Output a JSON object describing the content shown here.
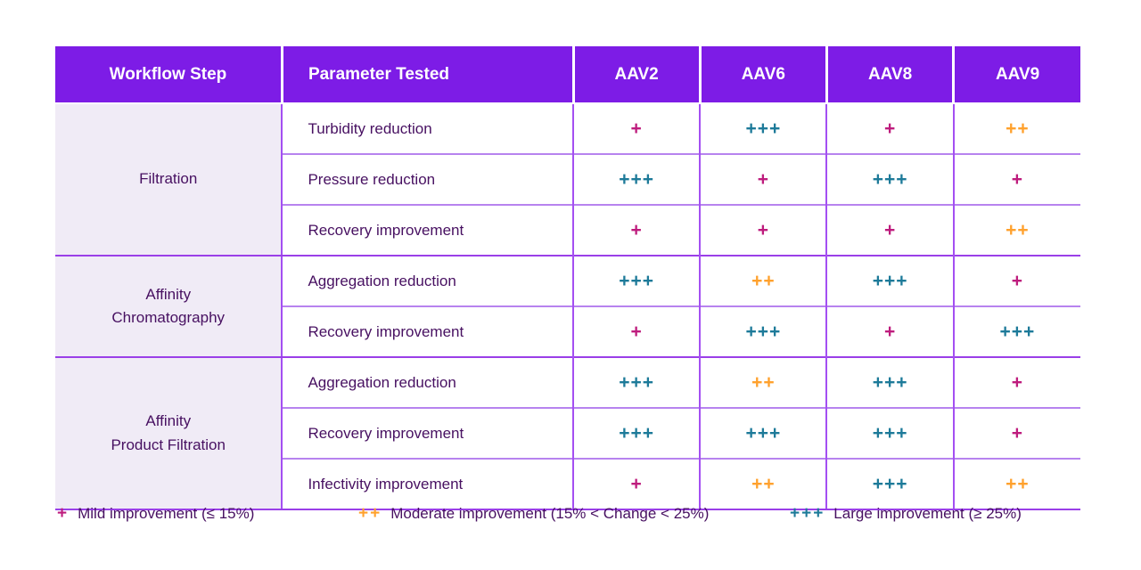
{
  "colors": {
    "header_bg": "#7d1ce6",
    "header_text": "#ffffff",
    "workflow_column_bg": "#f0ebf6",
    "body_text": "#471061",
    "mild": "#be1c7d",
    "moderate": "#ffa12d",
    "large": "#1d7a99",
    "grid_vertical": "#a44ff2",
    "grid_horizontal": "#b783ef",
    "grid_group_boundary": "#9a3fe8"
  },
  "chart_data": {
    "type": "table",
    "columns": [
      "Workflow Step",
      "Parameter Tested",
      "AAV2",
      "AAV6",
      "AAV8",
      "AAV9"
    ],
    "serotypes": [
      "AAV2",
      "AAV6",
      "AAV8",
      "AAV9"
    ],
    "groups": [
      {
        "label": "Filtration",
        "rowspan": 3
      },
      {
        "label": "Affinity\nChromatography",
        "rowspan": 2
      },
      {
        "label": "Affinity\nProduct Filtration",
        "rowspan": 3
      }
    ],
    "rows": [
      {
        "workflow_step": "Filtration",
        "parameter": "Turbidity reduction",
        "values": [
          {
            "symbol": "+",
            "level": "mild"
          },
          {
            "symbol": "+++",
            "level": "large"
          },
          {
            "symbol": "+",
            "level": "mild"
          },
          {
            "symbol": "++",
            "level": "moderate"
          }
        ]
      },
      {
        "workflow_step": "Filtration",
        "parameter": "Pressure reduction",
        "values": [
          {
            "symbol": "+++",
            "level": "large"
          },
          {
            "symbol": "+",
            "level": "mild"
          },
          {
            "symbol": "+++",
            "level": "large"
          },
          {
            "symbol": "+",
            "level": "mild"
          }
        ]
      },
      {
        "workflow_step": "Filtration",
        "parameter": "Recovery improvement",
        "values": [
          {
            "symbol": "+",
            "level": "mild"
          },
          {
            "symbol": "+",
            "level": "mild"
          },
          {
            "symbol": "+",
            "level": "mild"
          },
          {
            "symbol": "++",
            "level": "moderate"
          }
        ]
      },
      {
        "workflow_step": "Affinity Chromatography",
        "parameter": "Aggregation reduction",
        "values": [
          {
            "symbol": "+++",
            "level": "large"
          },
          {
            "symbol": "++",
            "level": "moderate"
          },
          {
            "symbol": "+++",
            "level": "large"
          },
          {
            "symbol": "+",
            "level": "mild"
          }
        ]
      },
      {
        "workflow_step": "Affinity Chromatography",
        "parameter": "Recovery improvement",
        "values": [
          {
            "symbol": "+",
            "level": "mild"
          },
          {
            "symbol": "+++",
            "level": "large"
          },
          {
            "symbol": "+",
            "level": "mild"
          },
          {
            "symbol": "+++",
            "level": "large"
          }
        ]
      },
      {
        "workflow_step": "Affinity Product Filtration",
        "parameter": "Aggregation reduction",
        "values": [
          {
            "symbol": "+++",
            "level": "large"
          },
          {
            "symbol": "++",
            "level": "moderate"
          },
          {
            "symbol": "+++",
            "level": "large"
          },
          {
            "symbol": "+",
            "level": "mild"
          }
        ]
      },
      {
        "workflow_step": "Affinity Product Filtration",
        "parameter": "Recovery improvement",
        "values": [
          {
            "symbol": "+++",
            "level": "large"
          },
          {
            "symbol": "+++",
            "level": "large"
          },
          {
            "symbol": "+++",
            "level": "large"
          },
          {
            "symbol": "+",
            "level": "mild"
          }
        ]
      },
      {
        "workflow_step": "Affinity Product Filtration",
        "parameter": "Infectivity improvement",
        "values": [
          {
            "symbol": "+",
            "level": "mild"
          },
          {
            "symbol": "++",
            "level": "moderate"
          },
          {
            "symbol": "+++",
            "level": "large"
          },
          {
            "symbol": "++",
            "level": "moderate"
          }
        ]
      }
    ],
    "legend": [
      {
        "symbol": "+",
        "level": "mild",
        "label": "Mild improvement (≤ 15%)"
      },
      {
        "symbol": "++",
        "level": "moderate",
        "label": "Moderate improvement (15% < Change < 25%)"
      },
      {
        "symbol": "+++",
        "level": "large",
        "label": "Large improvement (≥ 25%)"
      }
    ]
  }
}
